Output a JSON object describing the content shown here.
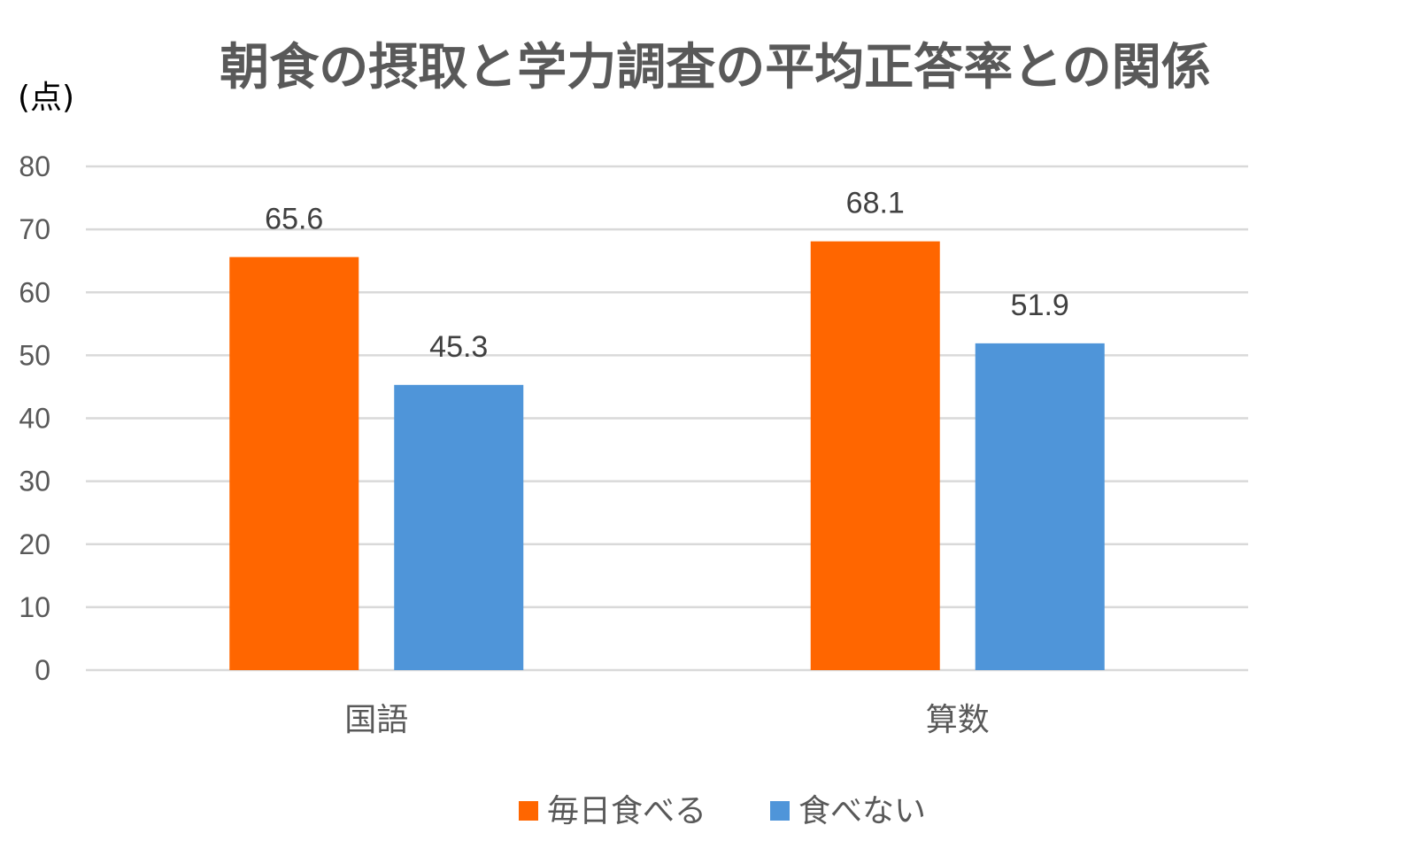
{
  "chart_data": {
    "type": "bar",
    "title": "朝食の摂取と学力調査の平均正答率との関係",
    "ylabel": "(点)",
    "xlabel": "",
    "categories": [
      "国語",
      "算数"
    ],
    "series": [
      {
        "name": "毎日食べる",
        "color": "#ff6600",
        "values": [
          65.6,
          68.1
        ]
      },
      {
        "name": "食べない",
        "color": "#4f95d9",
        "values": [
          45.3,
          51.9
        ]
      }
    ],
    "data_labels": [
      [
        "65.6",
        "68.1"
      ],
      [
        "45.3",
        "51.9"
      ]
    ],
    "ylim": [
      0,
      80
    ],
    "yticks": [
      0,
      10,
      20,
      30,
      40,
      50,
      60,
      70,
      80
    ],
    "grid": true,
    "legend": "bottom-center"
  }
}
